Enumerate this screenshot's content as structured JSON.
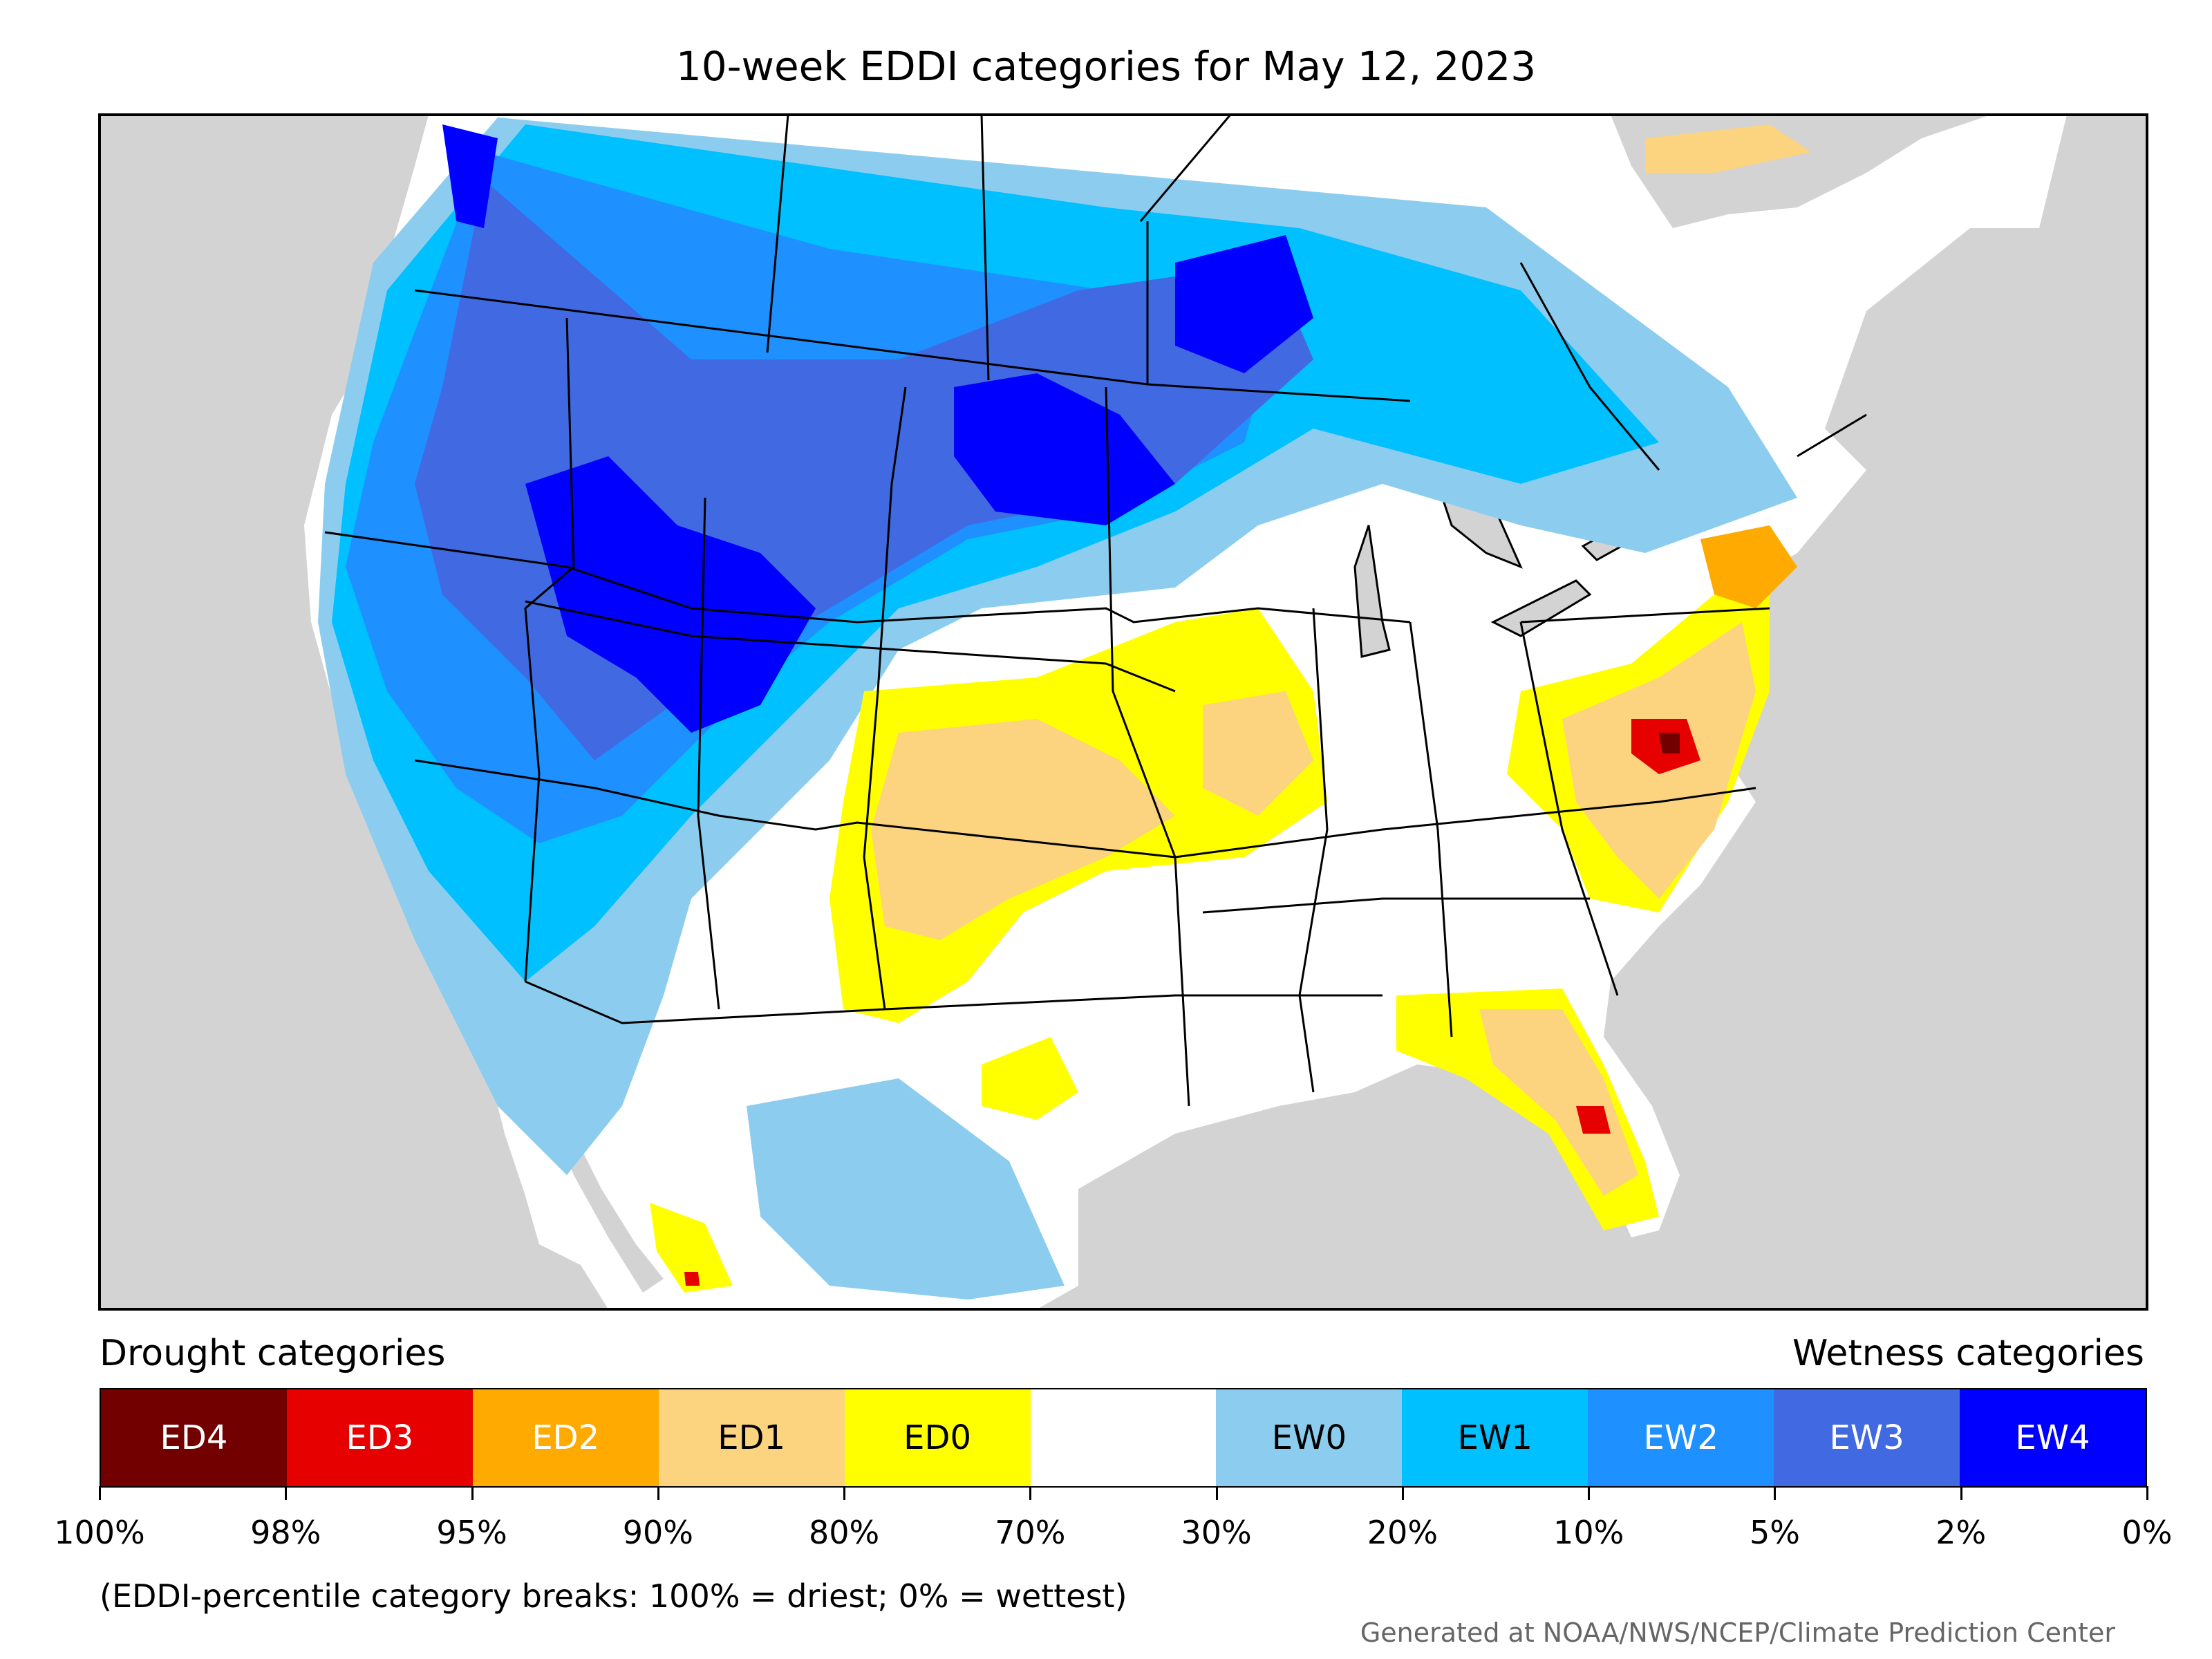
{
  "title": "10-week EDDI categories for May 12, 2023",
  "legend": {
    "drought_heading": "Drought categories",
    "wetness_heading": "Wetness categories",
    "categories": [
      {
        "label": "ED4",
        "color": "#730000",
        "text_color": "#ffffff"
      },
      {
        "label": "ED3",
        "color": "#e60000",
        "text_color": "#ffffff"
      },
      {
        "label": "ED2",
        "color": "#ffaa00",
        "text_color": "#ffffff"
      },
      {
        "label": "ED1",
        "color": "#fcd37f",
        "text_color": "#000000"
      },
      {
        "label": "ED0",
        "color": "#ffff00",
        "text_color": "#000000"
      },
      {
        "label": "",
        "color": "#ffffff",
        "text_color": "#000000"
      },
      {
        "label": "EW0",
        "color": "#8ccdef",
        "text_color": "#000000"
      },
      {
        "label": "EW1",
        "color": "#00c0ff",
        "text_color": "#000000"
      },
      {
        "label": "EW2",
        "color": "#1e90ff",
        "text_color": "#ffffff"
      },
      {
        "label": "EW3",
        "color": "#4169e1",
        "text_color": "#ffffff"
      },
      {
        "label": "EW4",
        "color": "#0000ff",
        "text_color": "#ffffff"
      }
    ],
    "breaks": [
      "100%",
      "98%",
      "95%",
      "90%",
      "80%",
      "70%",
      "30%",
      "20%",
      "10%",
      "5%",
      "2%",
      "0%"
    ]
  },
  "note": "(EDDI-percentile category breaks: 100% = driest; 0% = wettest)",
  "credit": "Generated at NOAA/NWS/NCEP/Climate Prediction Center",
  "colors": {
    "ocean": "#d3d3d3",
    "land": "#ffffff",
    "border": "#000000"
  }
}
